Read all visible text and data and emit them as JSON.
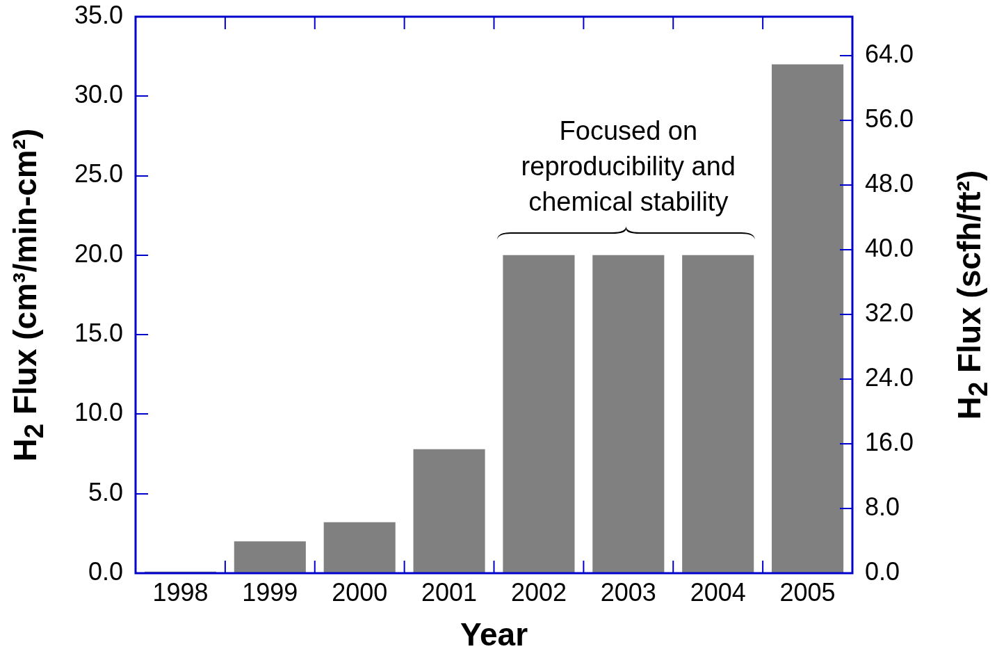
{
  "chart_data": {
    "type": "bar",
    "categories": [
      "1998",
      "1999",
      "2000",
      "2001",
      "2002",
      "2003",
      "2004",
      "2005"
    ],
    "series": [
      {
        "color": "#808080",
        "values": [
          0.1,
          2.0,
          3.2,
          7.8,
          20.0,
          20.0,
          20.0,
          32.0
        ]
      }
    ],
    "xlabel": "Year",
    "ylabel": "H$_{2}$ Flux (cm³/min-cm²)",
    "y2label": "H$_{2}$ Flux (scfh/ft²)",
    "ylim": [
      0,
      35
    ],
    "yticks": [
      {
        "value": 0,
        "label": "0.0"
      },
      {
        "value": 5,
        "label": "5.0"
      },
      {
        "value": 10,
        "label": "10.0"
      },
      {
        "value": 15,
        "label": "15.0"
      },
      {
        "value": 20,
        "label": "20.0"
      },
      {
        "value": 25,
        "label": "25.0"
      },
      {
        "value": 30,
        "label": "30.0"
      },
      {
        "value": 35,
        "label": "35.0"
      }
    ],
    "y2lim": [
      0,
      68.8
    ],
    "y2ticks": [
      {
        "value": 0,
        "label": "0.0"
      },
      {
        "value": 8,
        "label": "8.0"
      },
      {
        "value": 16,
        "label": "16.0"
      },
      {
        "value": 24,
        "label": "24.0"
      },
      {
        "value": 32,
        "label": "32.0"
      },
      {
        "value": 40,
        "label": "40.0"
      },
      {
        "value": 48,
        "label": "48.0"
      },
      {
        "value": 56,
        "label": "56.0"
      },
      {
        "value": 64,
        "label": "64.0"
      }
    ],
    "annotations": [
      {
        "text": "Focused on reproducibility and chemical stability",
        "x": "2003",
        "y": 20.0
      }
    ],
    "grid": false,
    "legend": false
  }
}
